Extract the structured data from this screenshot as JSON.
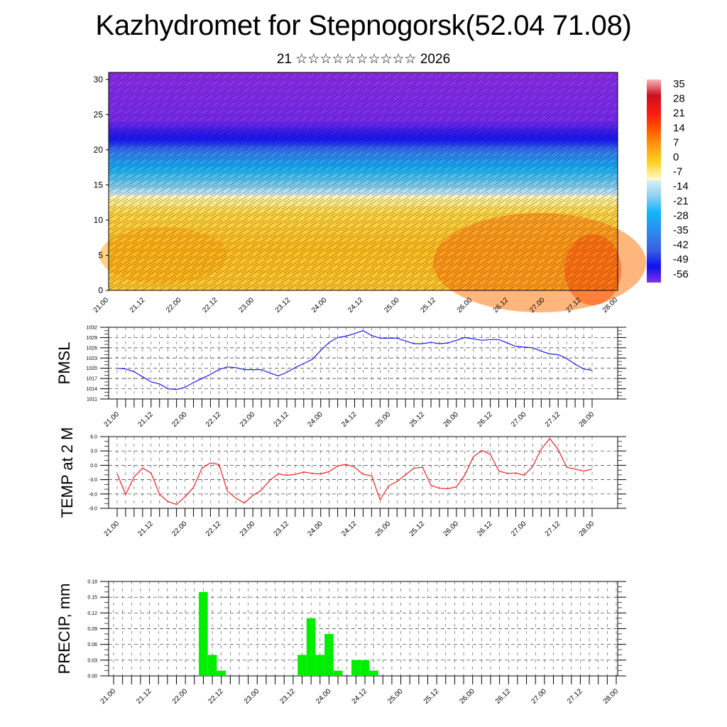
{
  "header": {
    "title": "Kazhydromet for Stepnogorsk(52.04 71.08)",
    "subtitle": "21 ☆☆☆☆☆☆☆☆☆☆ 2026"
  },
  "chart_data": [
    {
      "type": "heatmap",
      "name": "temperature-wind-cross-section",
      "title": "",
      "xlabel": "",
      "ylabel": "",
      "x_tick_labels": [
        "21.00",
        "21.12",
        "22.00",
        "22.12",
        "23.00",
        "23.12",
        "24.00",
        "24.12",
        "25.00",
        "25.12",
        "26.00",
        "26.12",
        "27.00",
        "27.12",
        "28.00"
      ],
      "y_ticks": [
        0,
        5,
        10,
        15,
        20,
        25,
        30
      ],
      "ylim": [
        0,
        31
      ],
      "colorbar": {
        "labels": [
          "35",
          "28",
          "21",
          "14",
          "7",
          "0",
          "-7",
          "-14",
          "-21",
          "-28",
          "-35",
          "-42",
          "-49",
          "-56"
        ],
        "range": [
          -63,
          38
        ],
        "stops": [
          {
            "v": 38,
            "c": "#f8b4b8"
          },
          {
            "v": 30,
            "c": "#c8101e"
          },
          {
            "v": 21,
            "c": "#ff1a10"
          },
          {
            "v": 13,
            "c": "#ff5a00"
          },
          {
            "v": 5,
            "c": "#ff9c10"
          },
          {
            "v": -3,
            "c": "#ffd020"
          },
          {
            "v": -12,
            "c": "#fffcd0"
          },
          {
            "v": -12.1,
            "c": "#d8eef8"
          },
          {
            "v": -20,
            "c": "#90d0f0"
          },
          {
            "v": -28,
            "c": "#10b8f8"
          },
          {
            "v": -38,
            "c": "#3088f0"
          },
          {
            "v": -47,
            "c": "#3860e0"
          },
          {
            "v": -55,
            "c": "#1010f0"
          },
          {
            "v": -63,
            "c": "#8030e8"
          }
        ]
      },
      "description": "Vertical cross-section of temperature (filled) with wind barbs over time; warm orange/yellow near surface levels 0-13, cold blue band 14-22, violet above 22."
    },
    {
      "type": "line",
      "name": "pmsl",
      "ylabel": "PMSL",
      "ylim": [
        1011,
        1032
      ],
      "y_ticks": [
        1011,
        1014,
        1017,
        1020,
        1023,
        1026,
        1029,
        1032
      ],
      "x_tick_labels": [
        "21.00",
        "21.12",
        "22.00",
        "22.12",
        "23.00",
        "23.12",
        "24.00",
        "24.12",
        "25.00",
        "25.12",
        "26.00",
        "26.12",
        "27.00",
        "27.12",
        "28.00"
      ],
      "x_step_hours": 3,
      "series": [
        {
          "name": "PMSL",
          "color": "#1a1aff",
          "values": [
            1020,
            1019.8,
            1019,
            1017.5,
            1016,
            1015.4,
            1014,
            1013.8,
            1014.4,
            1015.8,
            1017,
            1018.2,
            1019.6,
            1020.4,
            1020.2,
            1019.6,
            1019.6,
            1019.6,
            1018.6,
            1017.8,
            1018.8,
            1020.2,
            1021.4,
            1022.6,
            1025.2,
            1027.6,
            1029,
            1029.4,
            1030.2,
            1031,
            1029.6,
            1028.8,
            1028.8,
            1028.8,
            1028,
            1027.2,
            1027.2,
            1027.6,
            1027.2,
            1027.4,
            1028.2,
            1029,
            1028.6,
            1028.2,
            1028.4,
            1028.4,
            1027.4,
            1026.4,
            1026.2,
            1026,
            1025,
            1024.2,
            1024,
            1022.8,
            1021.2,
            1019.8,
            1019.4
          ]
        }
      ]
    },
    {
      "type": "line",
      "name": "temp-2m",
      "ylabel": "TEMP at 2 M",
      "ylim": [
        -9,
        6
      ],
      "y_ticks": [
        -9,
        -6,
        -3,
        0,
        3,
        6
      ],
      "y_tick_labels": [
        "-9.0",
        "-6.0",
        "-3.0",
        "0.0",
        "3.0",
        "6.0"
      ],
      "x_tick_labels": [
        "21.00",
        "21.12",
        "22.00",
        "22.12",
        "23.00",
        "23.12",
        "24.00",
        "24.12",
        "25.00",
        "25.12",
        "26.00",
        "26.12",
        "27.00",
        "27.12",
        "28.00"
      ],
      "x_step_hours": 3,
      "series": [
        {
          "name": "T2M",
          "color": "#ff1a1a",
          "values": [
            -1.8,
            -6.1,
            -2.4,
            -0.6,
            -1.6,
            -6.1,
            -7.6,
            -8.2,
            -6.6,
            -4.6,
            -0.6,
            0.5,
            0.2,
            -5.4,
            -6.9,
            -7.9,
            -6.3,
            -5.2,
            -3.1,
            -1.8,
            -2.1,
            -1.9,
            -1.4,
            -1.7,
            -1.8,
            -1.3,
            -0.1,
            0.2,
            -0.4,
            -1.9,
            -2.2,
            -7.2,
            -4.3,
            -3.4,
            -2.0,
            -0.6,
            -0.4,
            -4.2,
            -4.8,
            -4.9,
            -4.5,
            -2.0,
            1.8,
            3.1,
            2.3,
            -1.2,
            -1.7,
            -1.6,
            -2.1,
            -0.2,
            3.4,
            5.6,
            3.3,
            -0.4,
            -0.8,
            -1.2,
            -0.8
          ]
        }
      ]
    },
    {
      "type": "bar",
      "name": "precip",
      "ylabel": "PRECIP, mm",
      "ylim": [
        0,
        0.18
      ],
      "y_ticks": [
        0,
        0.03,
        0.06,
        0.09,
        0.12,
        0.15,
        0.18
      ],
      "y_tick_labels": [
        "0.00",
        "0.03",
        "0.06",
        "0.09",
        "0.12",
        "0.15",
        "0.18"
      ],
      "x_tick_labels": [
        "21.00",
        "21.12",
        "22.00",
        "22.12",
        "23.00",
        "23.12",
        "24.00",
        "24.12",
        "25.00",
        "25.12",
        "26.00",
        "26.12",
        "27.00",
        "27.12",
        "28.00"
      ],
      "x_step_hours": 3,
      "bar_color": "#00ee00",
      "values": [
        0,
        0,
        0,
        0,
        0,
        0,
        0,
        0,
        0,
        0,
        0.16,
        0.04,
        0.01,
        0,
        0,
        0,
        0,
        0,
        0,
        0,
        0,
        0.04,
        0.11,
        0.04,
        0.08,
        0.01,
        0,
        0.03,
        0.03,
        0.01,
        0,
        0,
        0,
        0,
        0,
        0,
        0,
        0,
        0,
        0,
        0,
        0,
        0,
        0,
        0,
        0,
        0,
        0,
        0,
        0,
        0,
        0,
        0,
        0,
        0,
        0,
        0
      ]
    }
  ]
}
